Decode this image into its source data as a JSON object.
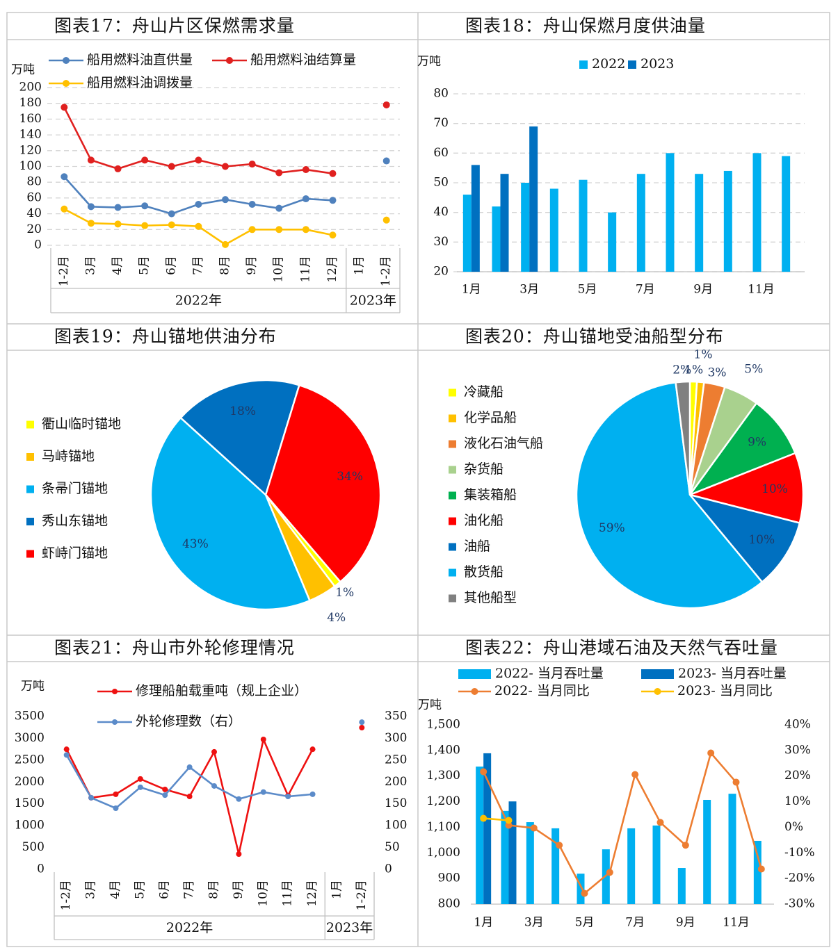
{
  "chart_data": [
    {
      "type": "line",
      "title": "图表17：舟山片区保燃需求量",
      "y_label": "万吨",
      "categories": [
        "1-2月",
        "3月",
        "4月",
        "5月",
        "6月",
        "7月",
        "8月",
        "9月",
        "10月",
        "11月",
        "12月",
        "1月",
        "1-2月"
      ],
      "x_groups": [
        {
          "label": "2022年",
          "count": 11
        },
        {
          "label": "2023年",
          "count": 2
        }
      ],
      "series": [
        {
          "name": "船用燃料油直供量",
          "color": "#4f81bd",
          "values": [
            87,
            49,
            48,
            50,
            40,
            52,
            58,
            52,
            47,
            59,
            57,
            null,
            107
          ]
        },
        {
          "name": "船用燃料油结算量",
          "color": "#e0201f",
          "values": [
            175,
            108,
            97,
            108,
            100,
            108,
            100,
            103,
            92,
            96,
            91,
            null,
            178
          ]
        },
        {
          "name": "船用燃料油调拨量",
          "color": "#ffc000",
          "values": [
            46,
            28,
            27,
            25,
            26,
            24,
            1,
            20,
            20,
            20,
            13,
            null,
            32
          ]
        }
      ],
      "ylim": [
        0,
        200
      ],
      "yticks": [
        0,
        20,
        40,
        60,
        80,
        100,
        120,
        140,
        160,
        180,
        200
      ],
      "grid": true
    },
    {
      "type": "bar",
      "title": "图表18：舟山保燃月度供油量",
      "y_label": "万吨",
      "categories": [
        "1月",
        null,
        "3月",
        null,
        "5月",
        null,
        "7月",
        null,
        "9月",
        null,
        "11月",
        null
      ],
      "series": [
        {
          "name": "2022",
          "color": "#00b0f0",
          "values": [
            46,
            42,
            50,
            48,
            51,
            40,
            53,
            60,
            53,
            54,
            60,
            59
          ]
        },
        {
          "name": "2023",
          "color": "#0070c0",
          "values": [
            56,
            53,
            69,
            null,
            null,
            null,
            null,
            null,
            null,
            null,
            null,
            null
          ]
        }
      ],
      "ylim": [
        20,
        80
      ],
      "yticks": [
        20,
        30,
        40,
        50,
        60,
        70,
        80
      ],
      "grid": true
    },
    {
      "type": "pie",
      "title": "图表19：舟山锚地供油分布",
      "categories": [
        "衢山临时锚地",
        "马峙锚地",
        "条帚门锚地",
        "秀山东锚地",
        "虾峙门锚地"
      ],
      "values": [
        1,
        4,
        43,
        18,
        34
      ],
      "value_labels": [
        "1%",
        "4%",
        "43%",
        "18%",
        "34%"
      ],
      "colors": [
        "#ffff00",
        "#ffc000",
        "#00b0f0",
        "#0070c0",
        "#ff0000"
      ]
    },
    {
      "type": "pie",
      "title": "图表20：舟山锚地受油船型分布",
      "categories": [
        "冷藏船",
        "化学品船",
        "液化石油气船",
        "杂货船",
        "集装箱船",
        "油化船",
        "油船",
        "散货船",
        "其他船型"
      ],
      "values": [
        1,
        1,
        3,
        5,
        9,
        10,
        10,
        59,
        2
      ],
      "value_labels": [
        "1%",
        "1%",
        "3%",
        "5%",
        "9%",
        "10%",
        "10%",
        "59%",
        "2%"
      ],
      "colors": [
        "#ffff00",
        "#ffc000",
        "#ed7d31",
        "#a9d18e",
        "#00b050",
        "#ff0000",
        "#0070c0",
        "#00b0f0",
        "#808080"
      ]
    },
    {
      "type": "line",
      "title": "图表21：舟山市外轮修理情况",
      "y_label": "万吨",
      "categories": [
        "1-2月",
        "3月",
        "4月",
        "5月",
        "6月",
        "7月",
        "8月",
        "9月",
        "10月",
        "11月",
        "12月",
        "1月",
        "1-2月"
      ],
      "x_groups": [
        {
          "label": "2022年",
          "count": 11
        },
        {
          "label": "2023年",
          "count": 2
        }
      ],
      "series": [
        {
          "name": "修理船舶载重吨（规上企业）",
          "color": "#ee1111",
          "values": [
            2750,
            1640,
            1720,
            2070,
            1830,
            1670,
            2690,
            350,
            2975,
            1690,
            2750,
            null,
            3245
          ]
        },
        {
          "name": "外轮修理数（右）",
          "color": "#5b8bc9",
          "axis": "y2",
          "values": [
            262,
            164,
            140,
            188,
            170,
            234,
            191,
            161,
            177,
            167,
            172,
            null,
            337
          ]
        }
      ],
      "ylim": [
        0,
        3500
      ],
      "yticks": [
        0,
        500,
        1000,
        1500,
        2000,
        2500,
        3000,
        3500
      ],
      "y2lim": [
        0,
        350
      ],
      "y2ticks": [
        0,
        50,
        100,
        150,
        200,
        250,
        300,
        350
      ],
      "grid": false
    },
    {
      "type": "bar",
      "title": "图表22：舟山港域石油及天然气吞吐量",
      "y_label": "万吨",
      "categories": [
        "1月",
        null,
        "3月",
        null,
        "5月",
        null,
        "7月",
        null,
        "9月",
        null,
        "11月",
        null
      ],
      "series": [
        {
          "name": "2022- 当月吞吐量",
          "type": "bar",
          "color": "#00b0f0",
          "values": [
            1337,
            1164,
            1120,
            1096,
            919,
            1014,
            1096,
            1107,
            941,
            1207,
            1231,
            1047
          ]
        },
        {
          "name": "2023- 当月吞吐量",
          "type": "bar",
          "color": "#0070c0",
          "values": [
            1389,
            1201,
            null,
            null,
            null,
            null,
            null,
            null,
            null,
            null,
            null,
            null
          ]
        },
        {
          "name": "2022- 当月同比",
          "type": "line",
          "axis": "y2",
          "color": "#ed7d31",
          "values": [
            21.7,
            0.8,
            -0.3,
            -7,
            -25.8,
            -17.6,
            20.6,
            1.9,
            -7,
            29,
            17.6,
            -16.3
          ]
        },
        {
          "name": "2023- 当月同比",
          "type": "line",
          "axis": "y2",
          "color": "#ffc000",
          "values": [
            3.5,
            2.7,
            null,
            null,
            null,
            null,
            null,
            null,
            null,
            null,
            null,
            null
          ]
        }
      ],
      "ylim": [
        800,
        1500
      ],
      "yticks": [
        {
          "value": 800,
          "label": "800"
        },
        {
          "value": 900,
          "label": "900"
        },
        {
          "value": 1000,
          "label": "1,000"
        },
        {
          "value": 1100,
          "label": "1,100"
        },
        {
          "value": 1200,
          "label": "1,200"
        },
        {
          "value": 1300,
          "label": "1,300"
        },
        {
          "value": 1400,
          "label": "1,400"
        },
        {
          "value": 1500,
          "label": "1,500"
        }
      ],
      "y2lim": [
        -30,
        40
      ],
      "y2ticks": [
        {
          "value": -30,
          "label": "-30%"
        },
        {
          "value": -20,
          "label": "-20%"
        },
        {
          "value": -10,
          "label": "-10%"
        },
        {
          "value": 0,
          "label": "0%"
        },
        {
          "value": 10,
          "label": "10%"
        },
        {
          "value": 20,
          "label": "20%"
        },
        {
          "value": 30,
          "label": "30%"
        },
        {
          "value": 40,
          "label": "40%"
        }
      ],
      "grid": false
    }
  ]
}
